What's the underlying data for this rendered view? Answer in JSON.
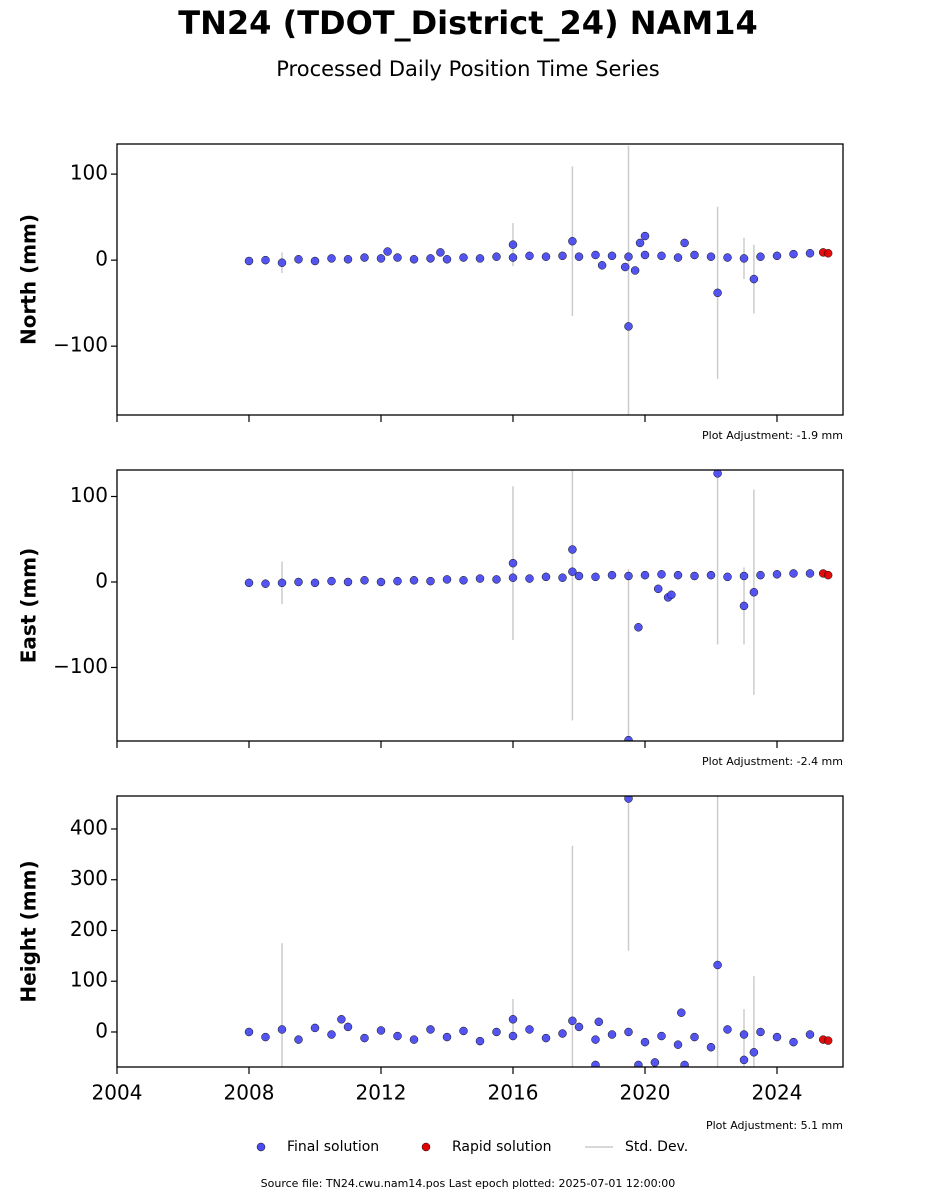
{
  "title": "TN24 (TDOT_District_24) NAM14",
  "subtitle": "Processed Daily Position Time Series",
  "footer": "Source file: TN24.cwu.nam14.pos  Last epoch plotted: 2025-07-01 12:00:00",
  "chart_data": [
    {
      "type": "scatter",
      "ylabel": "North (mm)",
      "note": "Plot Adjustment: -1.9 mm",
      "xlim": [
        2004,
        2026
      ],
      "xticks": [
        2004,
        2008,
        2012,
        2016,
        2020,
        2024
      ],
      "xtick_labels": false,
      "ylim": [
        -180,
        135
      ],
      "yticks": [
        {
          "value": -100,
          "label": "−100"
        },
        0,
        100
      ],
      "error_name": "Std. Dev.",
      "error_color": "#cccccc",
      "series": [
        {
          "name": "Final solution",
          "color": "#4b4bf0",
          "x": [
            2008.0,
            2008.5,
            2009.0,
            2009.5,
            2010.0,
            2010.5,
            2011.0,
            2011.5,
            2012.0,
            2012.5,
            2013.0,
            2013.5,
            2014.0,
            2014.5,
            2015.0,
            2015.5,
            2016.0,
            2016.5,
            2017.0,
            2017.5,
            2018.0,
            2018.5,
            2019.0,
            2019.5,
            2020.0,
            2020.5,
            2021.0,
            2021.5,
            2022.0,
            2022.5,
            2023.0,
            2023.5,
            2024.0,
            2024.5,
            2025.0,
            2012.2,
            2013.8,
            2016.0,
            2017.8,
            2018.7,
            2019.5,
            2019.7,
            2019.85,
            2020.0,
            2021.2,
            2022.2,
            2023.3,
            2019.4
          ],
          "values": [
            -1,
            0,
            -3,
            1,
            -1,
            2,
            1,
            3,
            2,
            3,
            1,
            2,
            1,
            3,
            2,
            4,
            3,
            5,
            4,
            5,
            4,
            6,
            5,
            4,
            6,
            5,
            3,
            6,
            4,
            3,
            2,
            4,
            5,
            7,
            8,
            10,
            9,
            18,
            22,
            -6,
            -77,
            -12,
            20,
            28,
            20,
            -38,
            -22,
            -8
          ],
          "errors": [
            3,
            3,
            12,
            3,
            3,
            3,
            3,
            3,
            3,
            3,
            3,
            3,
            3,
            3,
            3,
            3,
            3,
            3,
            3,
            3,
            3,
            3,
            3,
            3,
            3,
            3,
            3,
            3,
            3,
            3,
            24,
            3,
            3,
            3,
            3,
            3,
            3,
            25,
            87,
            3,
            210,
            3,
            3,
            3,
            3,
            100,
            40,
            3
          ]
        },
        {
          "name": "Rapid solution",
          "color": "#e00000",
          "x": [
            2025.4,
            2025.55
          ],
          "values": [
            9,
            8
          ]
        }
      ]
    },
    {
      "type": "scatter",
      "ylabel": "East (mm)",
      "note": "Plot Adjustment: -2.4 mm",
      "xlim": [
        2004,
        2026
      ],
      "xticks": [
        2004,
        2008,
        2012,
        2016,
        2020,
        2024
      ],
      "xtick_labels": false,
      "ylim": [
        -186,
        131
      ],
      "yticks": [
        {
          "value": -100,
          "label": "−100"
        },
        0,
        100
      ],
      "error_name": "Std. Dev.",
      "error_color": "#cccccc",
      "series": [
        {
          "name": "Final solution",
          "color": "#4b4bf0",
          "x": [
            2008.0,
            2008.5,
            2009.0,
            2009.5,
            2010.0,
            2010.5,
            2011.0,
            2011.5,
            2012.0,
            2012.5,
            2013.0,
            2013.5,
            2014.0,
            2014.5,
            2015.0,
            2015.5,
            2016.0,
            2016.5,
            2017.0,
            2017.5,
            2018.0,
            2018.5,
            2019.0,
            2019.5,
            2020.0,
            2020.5,
            2021.0,
            2021.5,
            2022.0,
            2022.5,
            2023.0,
            2023.5,
            2024.0,
            2024.5,
            2025.0,
            2016.0,
            2017.8,
            2017.8,
            2019.5,
            2019.8,
            2020.4,
            2020.7,
            2020.8,
            2022.2,
            2023.0,
            2023.3
          ],
          "values": [
            -1,
            -2,
            -1,
            0,
            -1,
            1,
            0,
            2,
            0,
            1,
            2,
            1,
            3,
            2,
            4,
            3,
            5,
            4,
            6,
            5,
            7,
            6,
            8,
            7,
            8,
            9,
            8,
            7,
            8,
            6,
            7,
            8,
            9,
            10,
            10,
            22,
            38,
            12,
            -185,
            -53,
            -8,
            -18,
            -15,
            127,
            -28,
            -12
          ],
          "errors": [
            3,
            3,
            25,
            3,
            3,
            3,
            3,
            3,
            3,
            3,
            3,
            3,
            3,
            3,
            3,
            3,
            3,
            3,
            3,
            3,
            3,
            3,
            3,
            3,
            3,
            3,
            3,
            3,
            3,
            3,
            3,
            3,
            3,
            3,
            3,
            90,
            200,
            3,
            200,
            3,
            3,
            3,
            3,
            200,
            45,
            120
          ]
        },
        {
          "name": "Rapid solution",
          "color": "#e00000",
          "x": [
            2025.4,
            2025.55
          ],
          "values": [
            10,
            8
          ]
        }
      ]
    },
    {
      "type": "scatter",
      "ylabel": "Height (mm)",
      "note": "Plot Adjustment: 5.1 mm",
      "xlim": [
        2004,
        2026
      ],
      "xticks": [
        2004,
        2008,
        2012,
        2016,
        2020,
        2024
      ],
      "xtick_labels": true,
      "ylim": [
        -69,
        465
      ],
      "yticks": [
        0,
        100,
        200,
        300,
        400
      ],
      "error_name": "Std. Dev.",
      "error_color": "#cccccc",
      "series": [
        {
          "name": "Final solution",
          "color": "#4b4bf0",
          "x": [
            2008.0,
            2008.5,
            2009.0,
            2009.5,
            2010.0,
            2010.5,
            2011.0,
            2011.5,
            2012.0,
            2012.5,
            2013.0,
            2013.5,
            2014.0,
            2014.5,
            2015.0,
            2015.5,
            2016.0,
            2016.5,
            2017.0,
            2017.5,
            2018.0,
            2018.5,
            2019.0,
            2019.5,
            2020.0,
            2020.5,
            2021.0,
            2021.5,
            2022.0,
            2022.5,
            2023.0,
            2023.5,
            2024.0,
            2024.5,
            2025.0,
            2016.0,
            2017.8,
            2018.5,
            2018.6,
            2019.5,
            2019.8,
            2020.3,
            2021.1,
            2021.2,
            2022.2,
            2023.0,
            2023.3,
            2010.8
          ],
          "values": [
            0,
            -10,
            5,
            -15,
            8,
            -5,
            10,
            -12,
            3,
            -8,
            -15,
            5,
            -10,
            2,
            -18,
            0,
            -8,
            5,
            -12,
            -3,
            10,
            -15,
            -5,
            0,
            -20,
            -8,
            -25,
            -10,
            -30,
            5,
            -5,
            0,
            -10,
            -20,
            -5,
            25,
            22,
            -65,
            20,
            460,
            -65,
            -60,
            38,
            -65,
            132,
            -55,
            -40,
            25
          ],
          "errors": [
            8,
            8,
            170,
            8,
            8,
            8,
            8,
            8,
            8,
            8,
            8,
            8,
            8,
            8,
            8,
            8,
            8,
            8,
            8,
            8,
            8,
            8,
            8,
            8,
            8,
            8,
            8,
            8,
            8,
            8,
            8,
            8,
            8,
            8,
            8,
            40,
            345,
            8,
            8,
            300,
            8,
            8,
            8,
            8,
            400,
            100,
            150,
            8
          ]
        },
        {
          "name": "Rapid solution",
          "color": "#e00000",
          "x": [
            2025.4,
            2025.55
          ],
          "values": [
            -15,
            -17
          ]
        }
      ]
    }
  ]
}
